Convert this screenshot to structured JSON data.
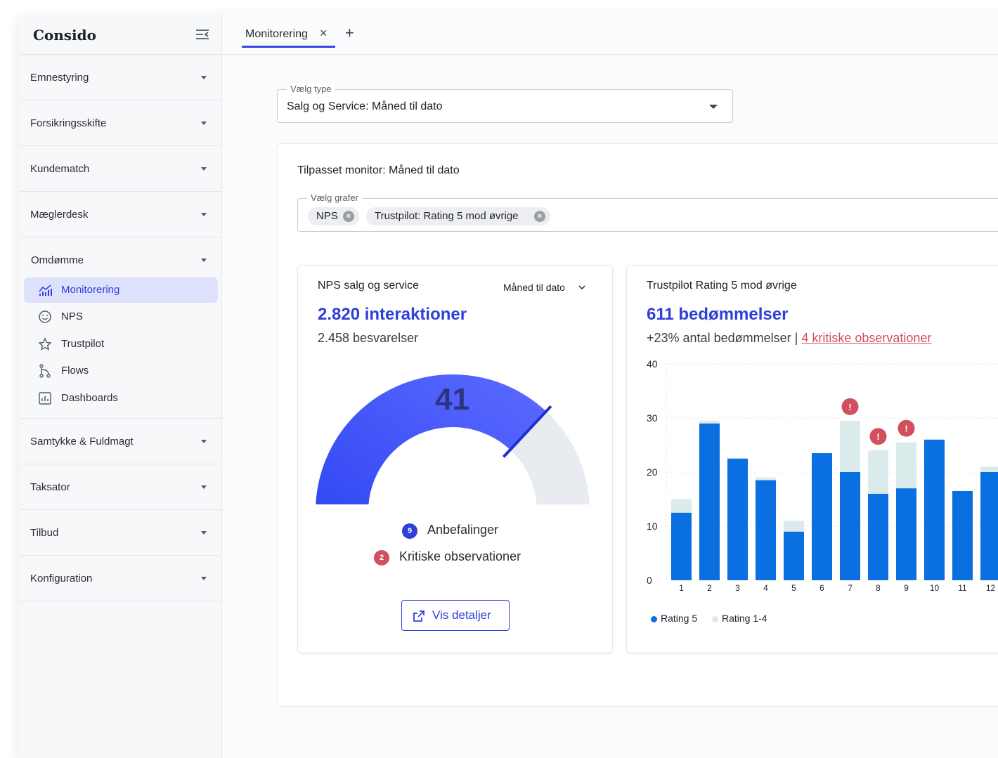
{
  "app": {
    "brand": "Consido"
  },
  "sidebar": {
    "sections_top": [
      {
        "label": "Emnestyring"
      },
      {
        "label": "Forsikringsskifte"
      },
      {
        "label": "Kundematch"
      },
      {
        "label": "Mæglerdesk"
      }
    ],
    "open_section": {
      "label": "Omdømme",
      "items": [
        {
          "label": "Monitorering",
          "icon": "chart-icon",
          "active": true
        },
        {
          "label": "NPS",
          "icon": "smiley-icon"
        },
        {
          "label": "Trustpilot",
          "icon": "star-icon"
        },
        {
          "label": "Flows",
          "icon": "flow-icon"
        },
        {
          "label": "Dashboards",
          "icon": "dashboard-icon"
        }
      ]
    },
    "sections_bottom": [
      {
        "label": "Samtykke & Fuldmagt"
      },
      {
        "label": "Taksator"
      },
      {
        "label": "Tilbud"
      },
      {
        "label": "Konfiguration"
      }
    ]
  },
  "tabs": {
    "items": [
      {
        "label": "Monitorering",
        "close": "×"
      }
    ],
    "add": "+"
  },
  "type_select": {
    "label": "Vælg type",
    "value": "Salg og Service: Måned til dato"
  },
  "monitor": {
    "title": "Tilpasset monitor: Måned til dato",
    "graph_select": {
      "label": "Vælg grafer",
      "chips": [
        {
          "label": "NPS"
        },
        {
          "label": "Trustpilot: Rating 5 mod øvrige"
        }
      ]
    }
  },
  "nps": {
    "title": "NPS salg og service",
    "period": "Måned til dato",
    "interactions": "2.820 interaktioner",
    "responses": "2.458 besvarelser",
    "score": 41,
    "gauge": {
      "min": -100,
      "max": 100,
      "value": 41,
      "fill_color": "#2f44f2",
      "track_color": "#e8ebf0"
    },
    "recommendations": {
      "count": "9",
      "label": "Anbefalinger",
      "color": "#2f3fd9"
    },
    "critical": {
      "count": "2",
      "label": "Kritiske observationer",
      "color": "#d0505f"
    },
    "details_button": "Vis detaljer"
  },
  "trustpilot": {
    "title": "Trustpilot Rating 5 mod øvrige",
    "ratings_count": "611 bedømmelser",
    "growth": "+23% antal bedømmelser",
    "separator": "|",
    "critical_link": "4 kritiske observationer"
  },
  "chart_data": {
    "type": "bar",
    "stacked": true,
    "categories": [
      "1",
      "2",
      "3",
      "4",
      "5",
      "6",
      "7",
      "8",
      "9",
      "10",
      "11",
      "12"
    ],
    "series": [
      {
        "name": "Rating 5",
        "color": "#0a6fe0",
        "values": [
          12.5,
          29,
          22.5,
          18.5,
          9,
          23.5,
          20,
          16,
          17,
          26,
          16.5,
          20
        ]
      },
      {
        "name": "Rating 1-4",
        "color": "#dbeaea",
        "values": [
          2.5,
          0.5,
          0,
          0.5,
          2,
          0,
          9.5,
          8,
          8.5,
          0,
          0,
          1
        ]
      }
    ],
    "ylim": [
      0,
      40
    ],
    "yticks": [
      0,
      10,
      20,
      30,
      40
    ],
    "grid": true,
    "alerts": [
      7,
      8,
      9
    ],
    "alert_symbol": "!",
    "alert_color": "#d0505f",
    "legend": "bottom-left"
  }
}
